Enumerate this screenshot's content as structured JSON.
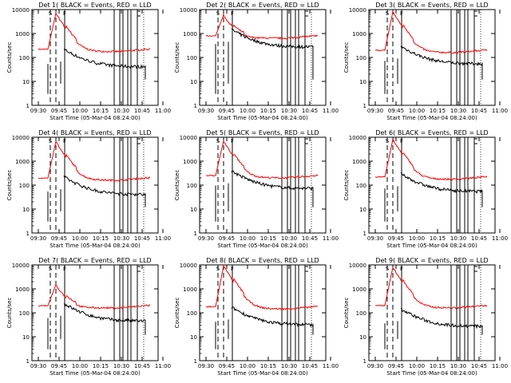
{
  "figure": {
    "background": "#ffffff",
    "axis_color": "#000000"
  },
  "chart_data": [
    {
      "type": "line",
      "title": "Det 1( BLACK = Events, RED = LLD",
      "xlabel": "Start Time (05-Mar-04 08:24:00)",
      "ylabel": "Counts/sec",
      "markers": [
        "S",
        "F"
      ],
      "peak": 7000,
      "red_level": 220,
      "black_level": 45
    },
    {
      "type": "line",
      "title": "Det 2( BLACK = Events, RED = LLD",
      "xlabel": "Start Time (05-Mar-04 08:24:00)",
      "ylabel": "Counts/sec",
      "markers": [
        "S",
        "F"
      ],
      "peak": 6000,
      "red_level": 800,
      "black_level": 300
    },
    {
      "type": "line",
      "title": "Det 3( BLACK = Events, RED = LLD",
      "xlabel": "Start Time (05-Mar-04 08:24:00)",
      "ylabel": "Counts/sec",
      "markers": [
        "S",
        "F"
      ],
      "peak": 8000,
      "red_level": 200,
      "black_level": 60
    },
    {
      "type": "line",
      "title": "Det 4( BLACK = Events, RED = LLD",
      "xlabel": "Start Time (05-Mar-04 08:24:00)",
      "ylabel": "Counts/sec",
      "markers": [
        "S",
        "F"
      ],
      "peak": 6500,
      "red_level": 200,
      "black_level": 45
    },
    {
      "type": "line",
      "title": "Det 5( BLACK = Events, RED = LLD",
      "xlabel": "Start Time (05-Mar-04 08:24:00)",
      "ylabel": "Counts/sec",
      "markers": [
        "S",
        "F"
      ],
      "peak": 7000,
      "red_level": 250,
      "black_level": 80
    },
    {
      "type": "line",
      "title": "Det 6( BLACK = Events, RED = LLD",
      "xlabel": "Start Time (05-Mar-04 08:24:00)",
      "ylabel": "Counts/sec",
      "markers": [
        "S",
        "F"
      ],
      "peak": 8000,
      "red_level": 220,
      "black_level": 60
    },
    {
      "type": "line",
      "title": "Det 7( BLACK = Events, RED = LLD",
      "xlabel": "Start Time (05-Mar-04 08:24:00)",
      "ylabel": "Counts/sec",
      "markers": [
        "S",
        "F"
      ],
      "peak": 1500,
      "red_level": 200,
      "black_level": 50
    },
    {
      "type": "line",
      "title": "Det 8( BLACK = Events, RED = LLD",
      "xlabel": "Start Time (05-Mar-04 08:24:00)",
      "ylabel": "Counts/sec",
      "markers": [
        "S",
        "F"
      ],
      "peak": 9000,
      "red_level": 180,
      "black_level": 35
    },
    {
      "type": "line",
      "title": "Det 9( BLACK = Events, RED = LLD",
      "xlabel": "Start Time (05-Mar-04 08:24:00)",
      "ylabel": "Counts/sec",
      "markers": [
        "S",
        "F"
      ],
      "peak": 8000,
      "red_level": 200,
      "black_level": 30
    }
  ],
  "axes": {
    "x_tick_labels": [
      "09:30",
      "09:45",
      "10:00",
      "10:15",
      "10:30",
      "10:45",
      "11:00"
    ],
    "y_tick_labels": [
      "1",
      "10",
      "100",
      "1000",
      "10000"
    ],
    "ylim": [
      1,
      10000
    ],
    "yscale": "log"
  },
  "series_colors": {
    "events": "#000000",
    "lld": "#ff0000"
  }
}
